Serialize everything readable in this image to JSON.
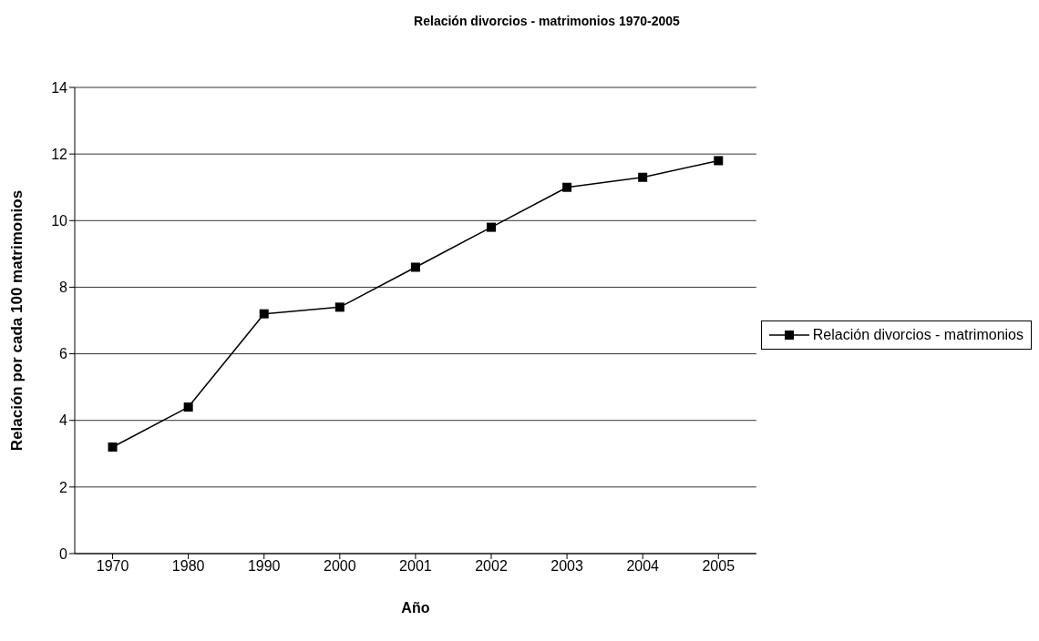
{
  "chart_data": {
    "type": "line",
    "title": "Relación divorcios - matrimonios 1970-2005",
    "xlabel": "Año",
    "ylabel": "Relación por cada 100 matrimonios",
    "categories": [
      "1970",
      "1980",
      "1990",
      "2000",
      "2001",
      "2002",
      "2003",
      "2004",
      "2005"
    ],
    "series": [
      {
        "name": "Relación divorcios - matrimonios",
        "color": "#000000",
        "values": [
          3.2,
          4.4,
          7.2,
          7.4,
          8.6,
          9.8,
          11.0,
          11.3,
          11.8
        ]
      }
    ],
    "ylim": [
      0,
      14
    ],
    "yticks": [
      0,
      2,
      4,
      6,
      8,
      10,
      12,
      14
    ],
    "grid": "y",
    "legend": "right",
    "marker": "square",
    "line_style": "solid"
  }
}
